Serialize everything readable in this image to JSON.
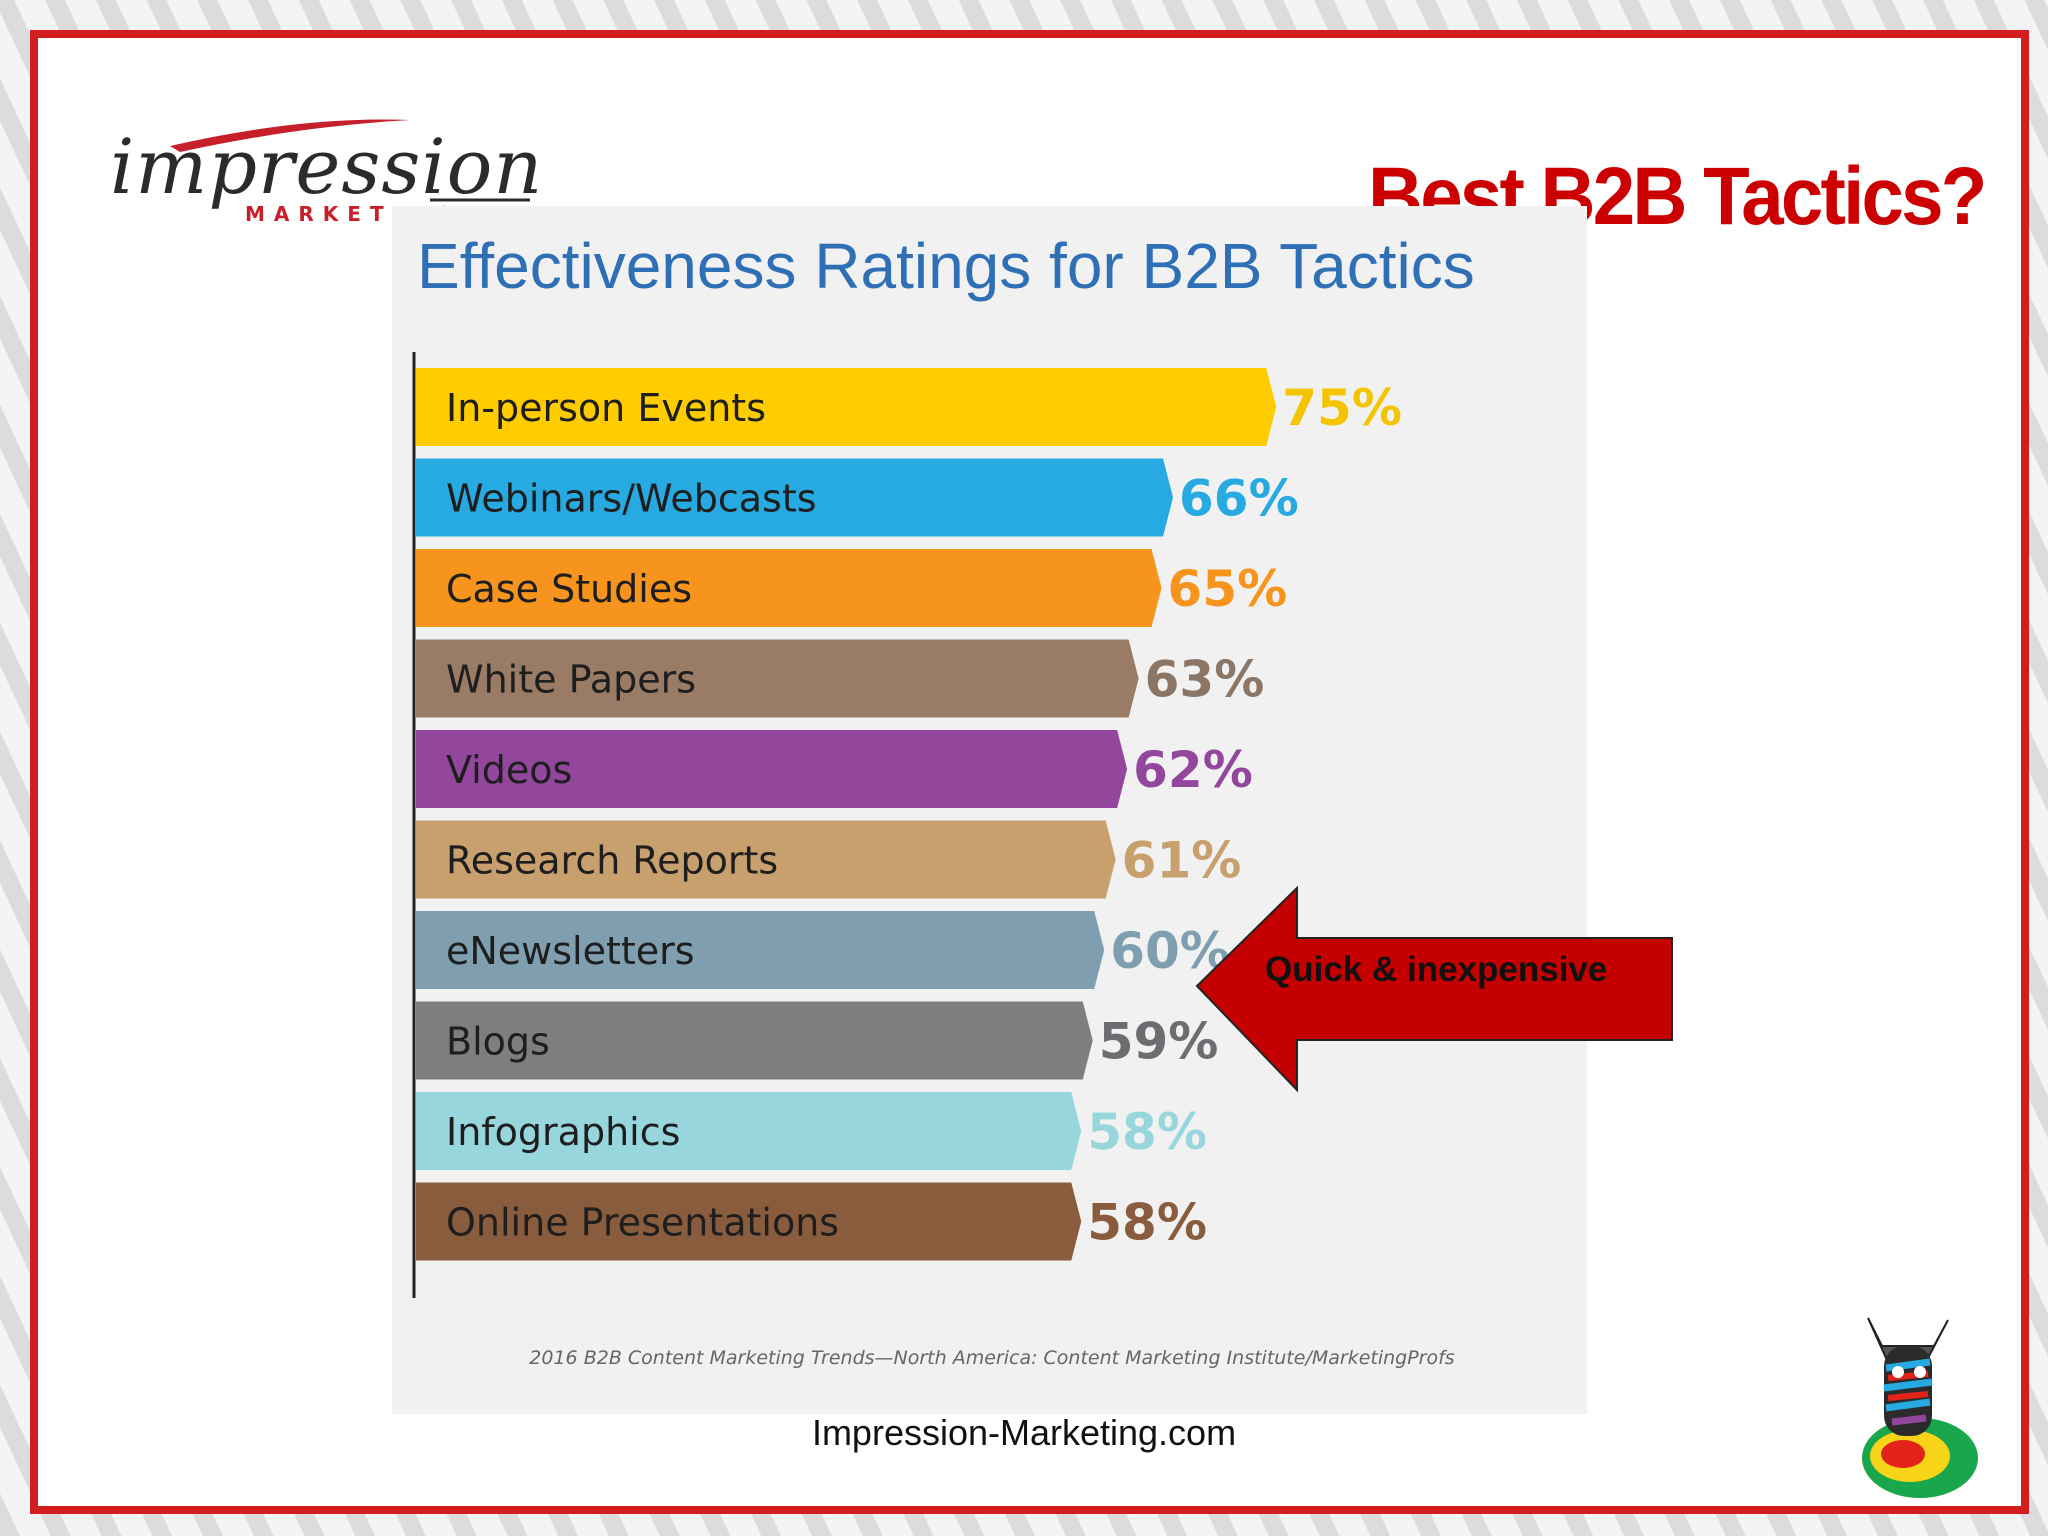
{
  "slide": {
    "title": "Best B2B Tactics?",
    "footer_url": "Impression-Marketing.com",
    "logo_word": "impression",
    "logo_sub": "MARKETING",
    "arrow_label": "Quick & inexpensive"
  },
  "colors": {
    "frame": "#d21e1e",
    "slide_title": "#cc0000",
    "arrow_fill": "#c40000",
    "chart_title": "#2e6fb5"
  },
  "icons": [
    "impression-logo",
    "zebra-mascot-icon",
    "left-arrow-callout"
  ],
  "chart_data": {
    "type": "bar",
    "orientation": "horizontal",
    "title": "Effectiveness Ratings for B2B Tactics",
    "source": "2016 B2B Content Marketing Trends—North America: Content Marketing Institute/MarketingProfs",
    "categories": [
      "In-person Events",
      "Webinars/Webcasts",
      "Case Studies",
      "White Papers",
      "Videos",
      "Research Reports",
      "eNewsletters",
      "Blogs",
      "Infographics",
      "Online Presentations"
    ],
    "values": [
      75,
      66,
      65,
      63,
      62,
      61,
      60,
      59,
      58,
      58
    ],
    "value_labels": [
      "75%",
      "66%",
      "65%",
      "63%",
      "62%",
      "61%",
      "60%",
      "59%",
      "58%",
      "58%"
    ],
    "bar_colors": [
      "#ffcc00",
      "#27aae1",
      "#f7941d",
      "#997b66",
      "#92479c",
      "#c8a06e",
      "#7f9fb0",
      "#7d7e80",
      "#97d6dc",
      "#8a5c3e"
    ],
    "label_colors": [
      "#f5c400",
      "#27aae1",
      "#f7941d",
      "#8b7564",
      "#92479c",
      "#c8a06e",
      "#7f9fb0",
      "#6c6d70",
      "#97d6dc",
      "#8a5c3e"
    ],
    "xlim": [
      0,
      100
    ],
    "grid": false,
    "legend": "none"
  }
}
